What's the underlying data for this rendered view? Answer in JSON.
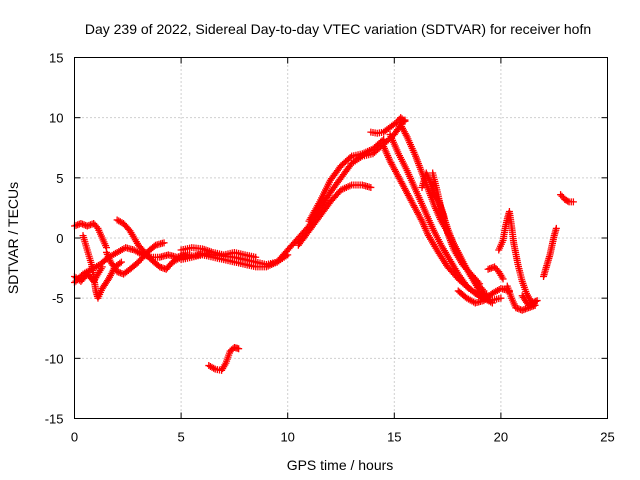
{
  "chart_data": {
    "type": "scatter",
    "title": "Day 239 of 2022, Sidereal Day-to-day VTEC variation (SDTVAR) for receiver hofn",
    "xlabel": "GPS time / hours",
    "ylabel": "SDTVAR / TECUs",
    "xlim": [
      0,
      25
    ],
    "ylim": [
      -15,
      15
    ],
    "xticks": [
      0,
      5,
      10,
      15,
      20,
      25
    ],
    "yticks": [
      -15,
      -10,
      -5,
      0,
      5,
      10,
      15
    ],
    "grid": true,
    "marker": "+",
    "series": [
      {
        "name": "SDTVAR",
        "color": "#ff0000",
        "tracks": [
          [
            [
              0.0,
              1.0
            ],
            [
              0.3,
              1.2
            ],
            [
              0.6,
              1.0
            ],
            [
              0.9,
              1.2
            ],
            [
              1.1,
              0.8
            ],
            [
              1.3,
              0.0
            ],
            [
              1.5,
              -0.8
            ]
          ],
          [
            [
              0.0,
              -3.2
            ],
            [
              0.3,
              -3.6
            ],
            [
              0.6,
              -3.0
            ],
            [
              0.9,
              -3.6
            ],
            [
              1.1,
              -3.0
            ],
            [
              1.3,
              -2.4
            ]
          ],
          [
            [
              0.4,
              0.2
            ],
            [
              0.6,
              -1.0
            ],
            [
              0.8,
              -2.2
            ],
            [
              0.9,
              -3.2
            ],
            [
              1.0,
              -4.4
            ],
            [
              1.1,
              -5.0
            ],
            [
              1.3,
              -4.2
            ],
            [
              1.6,
              -3.4
            ],
            [
              1.9,
              -2.4
            ],
            [
              2.2,
              -2.0
            ]
          ],
          [
            [
              0.0,
              -3.7
            ],
            [
              0.4,
              -3.0
            ],
            [
              0.8,
              -2.6
            ],
            [
              1.2,
              -2.2
            ],
            [
              1.6,
              -1.6
            ],
            [
              2.0,
              -1.2
            ],
            [
              2.4,
              -0.8
            ],
            [
              2.8,
              -1.0
            ],
            [
              3.2,
              -1.4
            ],
            [
              3.6,
              -1.6
            ],
            [
              4.0,
              -1.6
            ],
            [
              4.4,
              -1.4
            ],
            [
              4.8,
              -1.6
            ],
            [
              5.2,
              -1.4
            ],
            [
              5.6,
              -1.5
            ],
            [
              6.0,
              -1.3
            ],
            [
              6.5,
              -1.4
            ],
            [
              7.0,
              -1.5
            ],
            [
              7.5,
              -1.6
            ],
            [
              8.0,
              -1.8
            ],
            [
              8.5,
              -2.0
            ],
            [
              9.0,
              -2.2
            ],
            [
              9.5,
              -2.0
            ],
            [
              10.0,
              -1.0
            ],
            [
              10.5,
              0.0
            ],
            [
              11.0,
              1.0
            ],
            [
              11.5,
              2.4
            ],
            [
              12.0,
              3.8
            ],
            [
              12.5,
              5.0
            ],
            [
              13.0,
              6.2
            ],
            [
              13.5,
              6.8
            ],
            [
              14.0,
              7.0
            ],
            [
              14.5,
              7.8
            ],
            [
              15.0,
              8.6
            ],
            [
              15.3,
              9.4
            ],
            [
              15.5,
              9.8
            ]
          ],
          [
            [
              1.5,
              -1.2
            ],
            [
              1.7,
              -2.0
            ],
            [
              2.0,
              -2.8
            ],
            [
              2.3,
              -3.0
            ],
            [
              2.6,
              -2.6
            ],
            [
              3.0,
              -2.0
            ],
            [
              3.4,
              -1.2
            ],
            [
              3.8,
              -0.6
            ],
            [
              4.2,
              -0.4
            ]
          ],
          [
            [
              2.0,
              1.5
            ],
            [
              2.3,
              1.2
            ],
            [
              2.6,
              0.6
            ],
            [
              2.8,
              0.0
            ],
            [
              3.0,
              -0.6
            ],
            [
              3.3,
              -1.2
            ],
            [
              3.6,
              -1.8
            ],
            [
              4.0,
              -2.4
            ],
            [
              4.3,
              -2.6
            ],
            [
              4.6,
              -2.0
            ],
            [
              5.0,
              -1.6
            ],
            [
              5.4,
              -1.4
            ]
          ],
          [
            [
              5.0,
              -1.8
            ],
            [
              5.5,
              -1.6
            ],
            [
              6.0,
              -1.4
            ],
            [
              6.5,
              -1.6
            ],
            [
              7.0,
              -1.8
            ],
            [
              7.5,
              -2.0
            ],
            [
              8.0,
              -2.2
            ],
            [
              8.5,
              -2.4
            ],
            [
              9.0,
              -2.4
            ],
            [
              9.5,
              -2.0
            ],
            [
              10.0,
              -1.4
            ]
          ],
          [
            [
              5.0,
              -1.0
            ],
            [
              5.5,
              -0.8
            ],
            [
              6.0,
              -0.9
            ],
            [
              6.5,
              -1.2
            ],
            [
              7.0,
              -1.4
            ],
            [
              7.5,
              -1.2
            ],
            [
              8.0,
              -1.4
            ],
            [
              8.5,
              -1.6
            ]
          ],
          [
            [
              6.3,
              -10.6
            ],
            [
              6.6,
              -10.9
            ],
            [
              6.9,
              -11.0
            ],
            [
              7.1,
              -10.4
            ],
            [
              7.3,
              -9.4
            ],
            [
              7.5,
              -9.1
            ],
            [
              7.7,
              -9.2
            ]
          ],
          [
            [
              10.5,
              -0.6
            ],
            [
              11.0,
              0.6
            ],
            [
              11.5,
              1.8
            ],
            [
              12.0,
              3.0
            ],
            [
              12.5,
              4.0
            ],
            [
              13.0,
              4.4
            ],
            [
              13.5,
              4.4
            ],
            [
              13.9,
              4.2
            ]
          ],
          [
            [
              11.0,
              1.4
            ],
            [
              11.5,
              3.0
            ],
            [
              12.0,
              4.8
            ],
            [
              12.5,
              6.0
            ],
            [
              13.0,
              6.8
            ],
            [
              13.5,
              7.0
            ],
            [
              14.0,
              7.4
            ],
            [
              14.5,
              8.2
            ]
          ],
          [
            [
              13.9,
              8.8
            ],
            [
              14.2,
              8.7
            ],
            [
              14.5,
              8.8
            ],
            [
              14.8,
              9.2
            ],
            [
              15.1,
              9.6
            ],
            [
              15.3,
              10.0
            ],
            [
              15.5,
              9.7
            ]
          ],
          [
            [
              14.5,
              7.6
            ],
            [
              14.8,
              6.4
            ],
            [
              15.1,
              5.4
            ],
            [
              15.4,
              4.4
            ],
            [
              15.7,
              3.4
            ],
            [
              16.0,
              2.4
            ],
            [
              16.3,
              1.4
            ],
            [
              16.6,
              0.2
            ],
            [
              17.0,
              -1.0
            ],
            [
              17.5,
              -2.4
            ],
            [
              18.0,
              -3.4
            ],
            [
              18.5,
              -4.2
            ],
            [
              19.0,
              -4.8
            ],
            [
              19.5,
              -5.2
            ],
            [
              20.0,
              -5.0
            ]
          ],
          [
            [
              14.8,
              8.6
            ],
            [
              15.2,
              7.0
            ],
            [
              15.6,
              5.6
            ],
            [
              16.0,
              4.0
            ],
            [
              16.4,
              2.4
            ],
            [
              16.8,
              0.8
            ],
            [
              17.2,
              -0.6
            ],
            [
              17.6,
              -1.8
            ],
            [
              18.0,
              -3.0
            ],
            [
              18.4,
              -4.0
            ],
            [
              18.8,
              -4.6
            ],
            [
              19.2,
              -5.0
            ],
            [
              19.6,
              -5.4
            ]
          ],
          [
            [
              15.3,
              9.4
            ],
            [
              15.6,
              8.4
            ],
            [
              16.0,
              6.8
            ],
            [
              16.3,
              5.4
            ],
            [
              16.6,
              4.0
            ],
            [
              16.9,
              2.6
            ],
            [
              17.2,
              1.4
            ],
            [
              17.6,
              0.2
            ],
            [
              18.0,
              -1.2
            ],
            [
              18.4,
              -2.6
            ],
            [
              18.8,
              -3.6
            ],
            [
              19.2,
              -4.4
            ]
          ],
          [
            [
              16.3,
              4.2
            ],
            [
              16.5,
              5.4
            ],
            [
              16.7,
              4.6
            ],
            [
              16.9,
              3.6
            ],
            [
              17.1,
              3.0
            ],
            [
              17.3,
              2.0
            ],
            [
              17.5,
              0.4
            ],
            [
              17.8,
              -1.0
            ],
            [
              18.2,
              -2.2
            ],
            [
              18.6,
              -3.0
            ],
            [
              19.0,
              -3.8
            ]
          ],
          [
            [
              16.8,
              5.4
            ],
            [
              17.0,
              4.0
            ],
            [
              17.2,
              2.4
            ],
            [
              17.5,
              0.8
            ],
            [
              17.8,
              -0.6
            ],
            [
              18.2,
              -2.0
            ],
            [
              18.6,
              -3.2
            ],
            [
              19.0,
              -4.4
            ],
            [
              19.4,
              -4.8
            ]
          ],
          [
            [
              18.0,
              -4.4
            ],
            [
              18.4,
              -5.0
            ],
            [
              18.8,
              -5.4
            ],
            [
              19.2,
              -5.2
            ],
            [
              19.6,
              -4.6
            ],
            [
              20.0,
              -4.2
            ],
            [
              20.4,
              -4.4
            ]
          ],
          [
            [
              19.4,
              -2.6
            ],
            [
              19.7,
              -2.4
            ],
            [
              19.9,
              -2.8
            ],
            [
              20.1,
              -3.4
            ]
          ],
          [
            [
              19.9,
              -1.0
            ],
            [
              20.1,
              -0.2
            ],
            [
              20.2,
              0.8
            ],
            [
              20.3,
              1.6
            ],
            [
              20.4,
              2.2
            ],
            [
              20.5,
              1.0
            ],
            [
              20.6,
              -0.4
            ],
            [
              20.8,
              -2.2
            ],
            [
              21.0,
              -3.6
            ],
            [
              21.2,
              -4.6
            ],
            [
              21.4,
              -5.2
            ],
            [
              21.6,
              -5.6
            ]
          ],
          [
            [
              20.3,
              -4.0
            ],
            [
              20.5,
              -5.0
            ],
            [
              20.7,
              -5.8
            ],
            [
              21.0,
              -6.0
            ],
            [
              21.3,
              -5.8
            ],
            [
              21.6,
              -5.6
            ]
          ],
          [
            [
              21.0,
              -4.8
            ],
            [
              21.3,
              -5.6
            ],
            [
              21.5,
              -5.4
            ],
            [
              21.7,
              -5.2
            ]
          ],
          [
            [
              22.0,
              -3.2
            ],
            [
              22.1,
              -2.6
            ],
            [
              22.2,
              -2.0
            ],
            [
              22.3,
              -1.4
            ],
            [
              22.4,
              -0.6
            ],
            [
              22.5,
              0.2
            ],
            [
              22.6,
              0.8
            ]
          ],
          [
            [
              22.8,
              3.6
            ],
            [
              23.0,
              3.2
            ],
            [
              23.2,
              3.0
            ],
            [
              23.4,
              3.0
            ]
          ]
        ]
      }
    ]
  }
}
